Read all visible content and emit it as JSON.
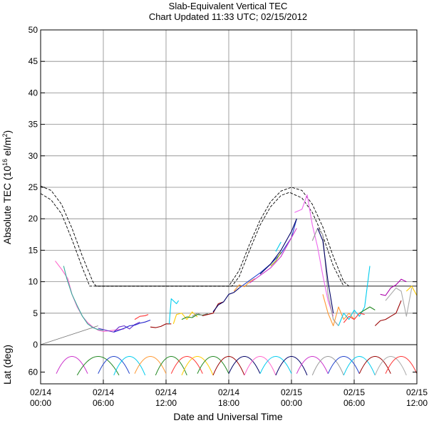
{
  "chart_data": [
    {
      "type": "line",
      "title": "Slab-Equivalent Vertical TEC",
      "subtitle": "Chart Updated 11:33 UTC; 02/15/2012",
      "xlabel": "Date and Universal Time",
      "ylabel_main": "Absolute TEC (10",
      "ylabel_sup1": "16",
      "ylabel_mid": " el/m",
      "ylabel_sup2": "2",
      "ylabel_end": ")",
      "xlim": [
        0,
        36
      ],
      "ylim": [
        0,
        50
      ],
      "grid": true,
      "yticks": [
        0,
        5,
        10,
        15,
        20,
        25,
        30,
        35,
        40,
        45,
        50
      ],
      "xticks": [
        {
          "hour": 0,
          "date": "02/14",
          "time": "00:00"
        },
        {
          "hour": 6,
          "date": "02/14",
          "time": "06:00"
        },
        {
          "hour": 12,
          "date": "02/14",
          "time": "12:00"
        },
        {
          "hour": 18,
          "date": "02/14",
          "time": "18:00"
        },
        {
          "hour": 24,
          "date": "02/15",
          "time": "00:00"
        },
        {
          "hour": 30,
          "date": "02/15",
          "time": "06:00"
        },
        {
          "hour": 36,
          "date": "02/15",
          "time": "12:00"
        }
      ],
      "reference_curves": [
        {
          "name": "reference-upper",
          "style": "dashed",
          "x": [
            0,
            1,
            2,
            3,
            4,
            5,
            5.3,
            18,
            19,
            20,
            21,
            22,
            23,
            24,
            25,
            26,
            27,
            28,
            29,
            29.5
          ],
          "y": [
            25.2,
            24.5,
            22.3,
            18.5,
            14,
            10,
            9.3,
            9.3,
            11.8,
            16,
            19.8,
            22.7,
            24.4,
            25,
            24.5,
            22.3,
            18.7,
            14,
            10,
            9.3
          ]
        },
        {
          "name": "reference-lower",
          "style": "dashed",
          "x": [
            0,
            1,
            2,
            3,
            4,
            4.7,
            18.3,
            19,
            20,
            21,
            22,
            23,
            23.8,
            25,
            26,
            27,
            28,
            29
          ],
          "y": [
            24,
            23,
            20.8,
            16.7,
            12.2,
            9.3,
            9.3,
            10.8,
            15,
            19,
            21.9,
            23.7,
            24.2,
            23.3,
            21,
            17.3,
            12.5,
            9.3
          ]
        },
        {
          "name": "reference-floor",
          "style": "solid",
          "x": [
            5.3,
            36
          ],
          "y": [
            9.3,
            9.3
          ]
        },
        {
          "name": "reference-ramp",
          "style": "solid-gray",
          "x": [
            0,
            5.5
          ],
          "y": [
            0,
            3
          ]
        }
      ],
      "series": [
        {
          "name": "pink",
          "color": "#ff66cc",
          "x": [
            1.4,
            2,
            2.6,
            3,
            3.5,
            4,
            4.5,
            5,
            5.5,
            6,
            7,
            8
          ],
          "y": [
            13.3,
            12,
            10.5,
            8,
            6,
            4.5,
            3.5,
            2.8,
            2.3,
            2.1,
            2.3,
            2.5
          ]
        },
        {
          "name": "teal",
          "color": "#33aa99",
          "x": [
            2.2,
            2.5,
            3,
            3.5,
            4,
            4.5,
            5,
            5.5,
            6
          ],
          "y": [
            12.5,
            10.5,
            8,
            6.2,
            4.5,
            3.3,
            2.7,
            2.4,
            2.3
          ]
        },
        {
          "name": "purple",
          "color": "#6633cc",
          "x": [
            5.5,
            6,
            6.5,
            7,
            7.5,
            8,
            8.5,
            9,
            9.5
          ],
          "y": [
            2.6,
            2.4,
            2.2,
            2,
            2.8,
            3,
            2.5,
            3.2,
            3.6
          ]
        },
        {
          "name": "blue",
          "color": "#2222cc",
          "x": [
            7,
            7.5,
            8,
            8.5,
            9,
            9.5,
            10,
            10.5
          ],
          "y": [
            2,
            2.3,
            2.6,
            3,
            3.1,
            3.4,
            3.6,
            3.9
          ]
        },
        {
          "name": "red-early",
          "color": "#ff3333",
          "x": [
            9,
            9.5,
            10,
            10.3
          ],
          "y": [
            4,
            4.5,
            4.6,
            4.8
          ]
        },
        {
          "name": "dark-red-early",
          "color": "#990000",
          "x": [
            10.5,
            11,
            11.5,
            12,
            12.5
          ],
          "y": [
            2.8,
            2.7,
            2.9,
            3.3,
            3.3
          ]
        },
        {
          "name": "cyan-early",
          "color": "#00ccee",
          "x": [
            12.3,
            12.5,
            13,
            13.2
          ],
          "y": [
            3.3,
            7.3,
            6.5,
            7
          ]
        },
        {
          "name": "yellow",
          "color": "#ffcc00",
          "x": [
            12.7,
            13,
            13.5,
            14,
            14.5,
            15
          ],
          "y": [
            3.3,
            4.8,
            5,
            4,
            5.2,
            4.4
          ]
        },
        {
          "name": "green-early",
          "color": "#228822",
          "x": [
            13.5,
            14,
            14.5,
            15,
            15.5,
            16
          ],
          "y": [
            4,
            4.4,
            4.3,
            4.8,
            4.7,
            4.9
          ]
        },
        {
          "name": "gray-early",
          "color": "#888888",
          "x": [
            14.5,
            15,
            15.5,
            16
          ],
          "y": [
            4.5,
            5,
            4.6,
            5
          ]
        },
        {
          "name": "dark-red-mid",
          "color": "#990000",
          "x": [
            15.5,
            16,
            16.5,
            17,
            17.5
          ],
          "y": [
            4.6,
            4.8,
            5,
            6.5,
            6.8
          ]
        },
        {
          "name": "navy-mid",
          "color": "#000066",
          "x": [
            16.5,
            17,
            17.5,
            18,
            18.5,
            19
          ],
          "y": [
            5.2,
            6.3,
            6.8,
            8,
            8.3,
            9
          ]
        },
        {
          "name": "orange-mid",
          "color": "#ff9933",
          "x": [
            18.5,
            19,
            19.5,
            20,
            20.5
          ],
          "y": [
            8.5,
            9.5,
            9.2,
            10,
            10.5
          ]
        },
        {
          "name": "blue-rise",
          "color": "#2244cc",
          "x": [
            19,
            20,
            21,
            22,
            23,
            24,
            24.5
          ],
          "y": [
            9,
            10.2,
            11.4,
            12.8,
            14.5,
            17,
            20
          ]
        },
        {
          "name": "magenta-rise",
          "color": "#cc33cc",
          "x": [
            20,
            21,
            22,
            23,
            24,
            24.5
          ],
          "y": [
            9.8,
            11,
            12.2,
            14,
            17,
            18.5
          ]
        },
        {
          "name": "navy-rise",
          "color": "#000066",
          "x": [
            21,
            22,
            23,
            24,
            24.5
          ],
          "y": [
            11.2,
            12.8,
            15,
            18,
            20
          ]
        },
        {
          "name": "olive",
          "color": "#99aa00",
          "x": [
            22,
            22.5,
            23
          ],
          "y": [
            12.5,
            13.3,
            14.7
          ]
        },
        {
          "name": "cyan-rise",
          "color": "#00ccee",
          "x": [
            22.5,
            23
          ],
          "y": [
            14.8,
            16.3
          ]
        },
        {
          "name": "violet-peak",
          "color": "#ee66ee",
          "x": [
            24.3,
            25,
            25.5,
            26,
            26.5,
            27,
            27.5,
            28
          ],
          "y": [
            21,
            21.5,
            23.8,
            19,
            15.5,
            11,
            7,
            4.5
          ]
        },
        {
          "name": "gray-peak",
          "color": "#999999",
          "x": [
            26,
            26.5,
            27,
            27.5,
            28,
            28.5
          ],
          "y": [
            16.5,
            18.5,
            17.5,
            8,
            4,
            3
          ]
        },
        {
          "name": "navy-peak",
          "color": "#000066",
          "x": [
            26.5,
            27,
            27.5,
            28
          ],
          "y": [
            18.5,
            16.5,
            10,
            5
          ]
        },
        {
          "name": "orange-late",
          "color": "#ff9933",
          "x": [
            27,
            27.5,
            28,
            28.5,
            29,
            29.5,
            30
          ],
          "y": [
            8,
            5,
            3,
            6,
            4,
            5,
            4
          ]
        },
        {
          "name": "cyan-late",
          "color": "#00ccee",
          "x": [
            28.5,
            29,
            29.5,
            30,
            30.5,
            31,
            31.5
          ],
          "y": [
            3,
            5,
            4,
            5.5,
            4.5,
            6,
            12.5
          ]
        },
        {
          "name": "red-late",
          "color": "#ff3333",
          "x": [
            29,
            29.5,
            30,
            30.5,
            31
          ],
          "y": [
            3.5,
            4.5,
            4,
            5,
            4.8
          ]
        },
        {
          "name": "green-late",
          "color": "#228822",
          "x": [
            30.5,
            31,
            31.5,
            32
          ],
          "y": [
            5,
            5.5,
            6,
            5.5
          ]
        },
        {
          "name": "dark-red-late",
          "color": "#990000",
          "x": [
            32,
            32.5,
            33,
            33.5,
            34,
            34.5
          ],
          "y": [
            3,
            3.8,
            4,
            4.5,
            5,
            7
          ]
        },
        {
          "name": "gray-late",
          "color": "#aaaaaa",
          "x": [
            33,
            33.5,
            34,
            34.5,
            35,
            35.5
          ],
          "y": [
            7,
            8,
            9,
            8.5,
            4.5,
            9
          ]
        },
        {
          "name": "magenta-late",
          "color": "#aa00aa",
          "x": [
            32.5,
            33,
            33.5,
            34,
            34.5,
            35
          ],
          "y": [
            8,
            7.8,
            9,
            9.5,
            10.4,
            10
          ]
        },
        {
          "name": "gold-late",
          "color": "#ffcc00",
          "x": [
            35,
            35.5,
            36
          ],
          "y": [
            8.5,
            9.3,
            7.8
          ]
        }
      ]
    },
    {
      "type": "line",
      "ylabel": "Lat (deg)",
      "xlim": [
        0,
        36
      ],
      "ylim": [
        25,
        75
      ],
      "yticks": [
        60
      ],
      "passes": [
        {
          "color": "#cc33cc",
          "x0": 1.5,
          "x1": 4.5
        },
        {
          "color": "#228822",
          "x0": 3.5,
          "x1": 7.5
        },
        {
          "color": "#2244cc",
          "x0": 5.5,
          "x1": 8.5
        },
        {
          "color": "#00ccee",
          "x0": 7,
          "x1": 10
        },
        {
          "color": "#ff9933",
          "x0": 9,
          "x1": 12
        },
        {
          "color": "#228822",
          "x0": 11,
          "x1": 14
        },
        {
          "color": "#ff3333",
          "x0": 12.5,
          "x1": 15.5
        },
        {
          "color": "#ffcc00",
          "x0": 13.5,
          "x1": 16.5
        },
        {
          "color": "#228822",
          "x0": 15,
          "x1": 18
        },
        {
          "color": "#990000",
          "x0": 16.5,
          "x1": 19.5
        },
        {
          "color": "#000066",
          "x0": 18,
          "x1": 21
        },
        {
          "color": "#ff66cc",
          "x0": 19.5,
          "x1": 22.5
        },
        {
          "color": "#00ccee",
          "x0": 21,
          "x1": 24
        },
        {
          "color": "#000066",
          "x0": 22.5,
          "x1": 25.5
        },
        {
          "color": "#cc33cc",
          "x0": 24.5,
          "x1": 27.5
        },
        {
          "color": "#999999",
          "x0": 26,
          "x1": 29
        },
        {
          "color": "#2244cc",
          "x0": 27.5,
          "x1": 30.5
        },
        {
          "color": "#00ccee",
          "x0": 29,
          "x1": 32
        },
        {
          "color": "#990000",
          "x0": 30.5,
          "x1": 33.5
        },
        {
          "color": "#aaaaaa",
          "x0": 32,
          "x1": 35
        },
        {
          "color": "#ff3333",
          "x0": 33,
          "x1": 36
        }
      ]
    }
  ]
}
